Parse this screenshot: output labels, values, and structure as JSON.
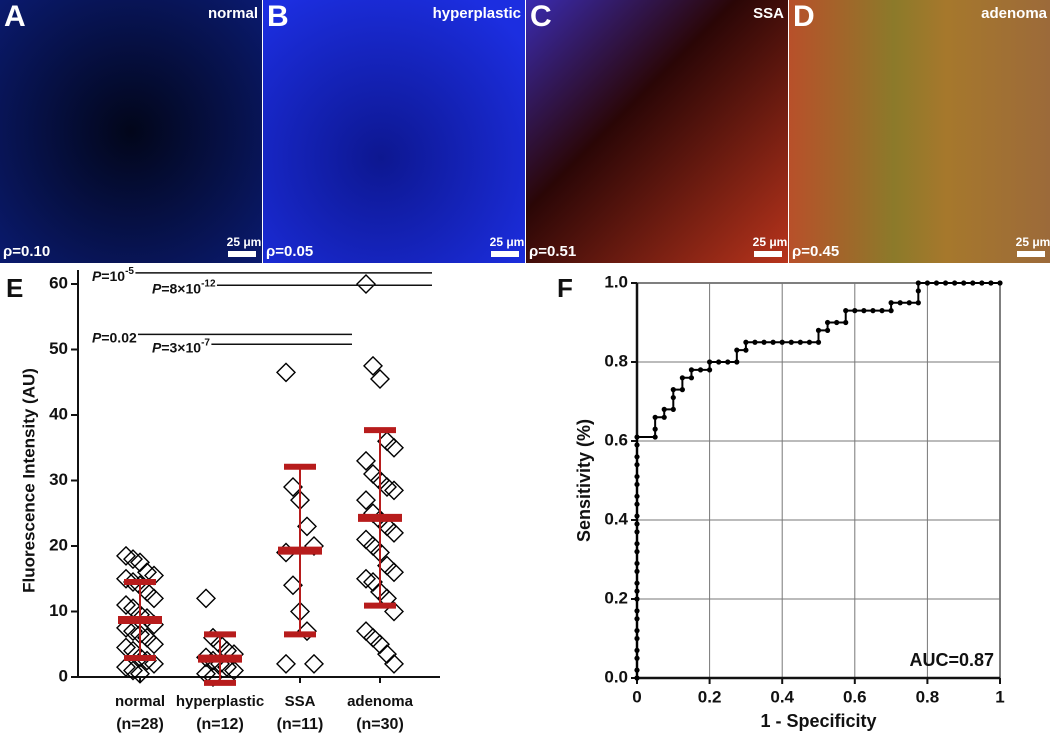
{
  "image_panels": [
    {
      "letter": "A",
      "label": "normal",
      "rho": "ρ=0.10",
      "scale": "25 μm"
    },
    {
      "letter": "B",
      "label": "hyperplastic",
      "rho": "ρ=0.05",
      "scale": "25 μm"
    },
    {
      "letter": "C",
      "label": "SSA",
      "rho": "ρ=0.51",
      "scale": "25 μm"
    },
    {
      "letter": "D",
      "label": "adenoma",
      "rho": "ρ=0.45",
      "scale": "25 μm"
    }
  ],
  "chart_data": [
    {
      "type": "strip",
      "panel": "E",
      "y_label": "Fluorescence Intensity (AU)",
      "categories": [
        "normal",
        "hyperplastic",
        "SSA",
        "adenoma"
      ],
      "sublabels": [
        "(n=28)",
        "(n=12)",
        "(n=11)",
        "(n=30)"
      ],
      "values": [
        [
          18.5,
          18,
          17.5,
          16,
          15.5,
          15,
          14.5,
          14,
          13,
          12,
          11,
          10.5,
          9.5,
          9,
          8,
          7.5,
          7,
          6.5,
          6,
          5,
          4.5,
          4,
          3,
          2.5,
          2,
          1.5,
          1,
          0.5
        ],
        [
          12,
          6,
          5,
          4,
          3.5,
          3,
          2.5,
          2,
          1.5,
          1,
          0.5,
          0
        ],
        [
          46.5,
          29,
          27,
          23,
          20,
          19,
          14,
          10,
          7,
          2,
          2
        ],
        [
          60,
          47.5,
          45.5,
          36,
          35,
          33,
          31,
          30,
          29,
          28.5,
          27,
          25,
          24,
          23,
          22,
          21,
          20,
          19,
          17,
          16,
          15,
          14.5,
          13,
          12,
          10,
          7,
          6,
          5,
          3.5,
          2
        ]
      ],
      "mean": [
        8.7,
        2.8,
        19.3,
        24.3
      ],
      "sd": [
        5.8,
        3.7,
        12.8,
        13.4
      ],
      "mean_color": "#b71c1c",
      "marker_color": "#000000",
      "ylim": [
        0,
        60
      ],
      "yticks": [
        0,
        10,
        20,
        30,
        40,
        50,
        60
      ],
      "p_values": [
        {
          "italic": "P",
          "text": "=10",
          "sup": "-5",
          "y": 61.7,
          "groups": [
            0,
            3
          ]
        },
        {
          "italic": "P",
          "text": "=8×10",
          "sup": "-12",
          "y": 59.8,
          "groups": [
            1,
            3
          ]
        },
        {
          "italic": "P",
          "text": "=0.02",
          "sup": "",
          "y": 52.3,
          "groups": [
            0,
            2
          ]
        },
        {
          "italic": "P",
          "text": "=3×10",
          "sup": "-7",
          "y": 50.8,
          "groups": [
            1,
            2
          ]
        }
      ]
    },
    {
      "type": "line",
      "panel": "F",
      "x_label": "1 - Specificity",
      "y_label": "Sensitivity (%)",
      "annotation": "AUC=0.87",
      "color": "#000000",
      "grid": true,
      "x": [
        0,
        0,
        0,
        0,
        0,
        0,
        0,
        0,
        0,
        0,
        0,
        0,
        0,
        0,
        0,
        0,
        0,
        0,
        0,
        0,
        0,
        0,
        0,
        0,
        0,
        0,
        0.05,
        0.05,
        0.05,
        0.075,
        0.075,
        0.1,
        0.1,
        0.1,
        0.125,
        0.125,
        0.15,
        0.15,
        0.175,
        0.2,
        0.2,
        0.225,
        0.25,
        0.275,
        0.275,
        0.3,
        0.3,
        0.325,
        0.35,
        0.375,
        0.4,
        0.425,
        0.45,
        0.475,
        0.5,
        0.5,
        0.525,
        0.525,
        0.55,
        0.575,
        0.575,
        0.6,
        0.625,
        0.65,
        0.675,
        0.7,
        0.7,
        0.725,
        0.75,
        0.775,
        0.775,
        0.775,
        0.8,
        0.825,
        0.85,
        0.875,
        0.9,
        0.925,
        0.95,
        0.975,
        1
      ],
      "values": [
        0,
        0.02,
        0.05,
        0.07,
        0.1,
        0.12,
        0.15,
        0.17,
        0.2,
        0.22,
        0.24,
        0.27,
        0.29,
        0.32,
        0.34,
        0.37,
        0.39,
        0.41,
        0.44,
        0.46,
        0.49,
        0.51,
        0.54,
        0.56,
        0.59,
        0.61,
        0.61,
        0.63,
        0.66,
        0.66,
        0.68,
        0.68,
        0.71,
        0.73,
        0.73,
        0.76,
        0.76,
        0.78,
        0.78,
        0.78,
        0.8,
        0.8,
        0.8,
        0.8,
        0.83,
        0.83,
        0.85,
        0.85,
        0.85,
        0.85,
        0.85,
        0.85,
        0.85,
        0.85,
        0.85,
        0.88,
        0.88,
        0.9,
        0.9,
        0.9,
        0.93,
        0.93,
        0.93,
        0.93,
        0.93,
        0.93,
        0.95,
        0.95,
        0.95,
        0.95,
        0.98,
        1,
        1,
        1,
        1,
        1,
        1,
        1,
        1,
        1,
        1
      ],
      "xlim": [
        0,
        1
      ],
      "xticks": [
        0,
        0.2,
        0.4,
        0.6,
        0.8,
        1
      ],
      "ylim": [
        0,
        1
      ],
      "yticks": [
        {
          "value": 0,
          "label": "0.0"
        },
        {
          "value": 0.2,
          "label": "0.2"
        },
        {
          "value": 0.4,
          "label": "0.4"
        },
        {
          "value": 0.6,
          "label": "0.6"
        },
        {
          "value": 0.8,
          "label": "0.8"
        },
        {
          "value": 1,
          "label": "1.0"
        }
      ]
    }
  ]
}
